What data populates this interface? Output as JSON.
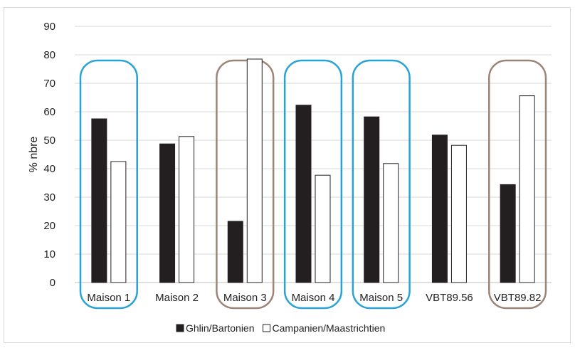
{
  "chart_data": {
    "type": "bar",
    "title": "",
    "xlabel": "",
    "ylabel": "% nbre",
    "ylim": [
      0,
      90
    ],
    "yticks": [
      0,
      10,
      20,
      30,
      40,
      50,
      60,
      70,
      80,
      90
    ],
    "grid": true,
    "legend_position": "bottom",
    "categories": [
      "Maison 1",
      "Maison 2",
      "Maison 3",
      "Maison 4",
      "Maison 5",
      "VBT89.56",
      "VBT89.82"
    ],
    "series": [
      {
        "name": "Ghlin/Bartonien",
        "color": "#231f20",
        "values": [
          57.5,
          48.7,
          21.5,
          62.3,
          58.2,
          51.8,
          34.4
        ]
      },
      {
        "name": "Campanien/Maastrichtien",
        "color": "#ffffff",
        "values": [
          42.5,
          51.3,
          78.5,
          37.7,
          41.8,
          48.2,
          65.6
        ]
      }
    ],
    "highlight_groups": [
      {
        "categories": [
          "Maison 1"
        ],
        "color": "#29a3d6"
      },
      {
        "categories": [
          "Maison 3"
        ],
        "color": "#9c8478"
      },
      {
        "categories": [
          "Maison 4"
        ],
        "color": "#29a3d6"
      },
      {
        "categories": [
          "Maison 5"
        ],
        "color": "#29a3d6"
      },
      {
        "categories": [
          "VBT89.82"
        ],
        "color": "#9c8478"
      }
    ]
  }
}
